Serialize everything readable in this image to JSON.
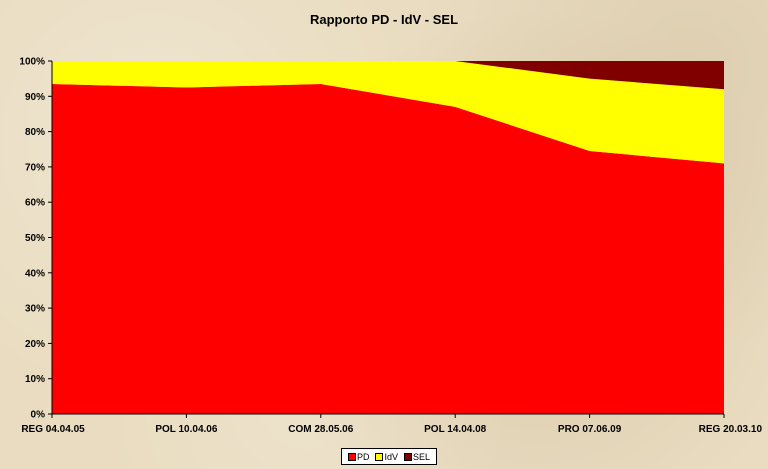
{
  "chart_data": {
    "type": "area",
    "stacked": "percent",
    "title": "Rapporto PD - IdV - SEL",
    "categories": [
      "REG 04.04.05",
      "POL 10.04.06",
      "COM 28.05.06",
      "POL 14.04.08",
      "PRO 07.06.09",
      "REG 20.03.10"
    ],
    "series": [
      {
        "name": "PD",
        "color": "#ff0000",
        "values": [
          93.5,
          92.5,
          93.5,
          87,
          74.5,
          71
        ]
      },
      {
        "name": "IdV",
        "color": "#ffff00",
        "values": [
          6.5,
          7.5,
          6.5,
          13,
          20.5,
          21
        ]
      },
      {
        "name": "SEL",
        "color": "#800000",
        "values": [
          0,
          0,
          0,
          0,
          5,
          8
        ]
      }
    ],
    "yticks": [
      "0%",
      "10%",
      "20%",
      "30%",
      "40%",
      "50%",
      "60%",
      "70%",
      "80%",
      "90%",
      "100%"
    ],
    "ylim": [
      0,
      100
    ],
    "grid": false,
    "legend_position": "bottom",
    "plot_background": "#f2e4b0"
  }
}
